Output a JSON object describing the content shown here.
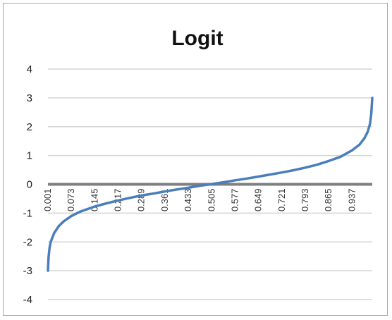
{
  "chart_data": {
    "type": "line",
    "title": "Logit",
    "xlabel": "",
    "ylabel": "",
    "ylim": [
      -4,
      4
    ],
    "yticks": [
      4,
      3,
      2,
      1,
      0,
      -1,
      -2,
      -3,
      -4
    ],
    "xlim": [
      0.001,
      0.999
    ],
    "xticks": [
      "0.001",
      "0.073",
      "0.145",
      "0.217",
      "0.289",
      "0.361",
      "0.433",
      "0.505",
      "0.577",
      "0.649",
      "0.721",
      "0.793",
      "0.865",
      "0.937"
    ],
    "grid": true,
    "legend": "none",
    "series": [
      {
        "color": "#4a7ebb",
        "points": [
          [
            0.001,
            -3.0
          ],
          [
            0.003,
            -2.52
          ],
          [
            0.006,
            -2.2
          ],
          [
            0.01,
            -1.99
          ],
          [
            0.02,
            -1.69
          ],
          [
            0.035,
            -1.44
          ],
          [
            0.05,
            -1.28
          ],
          [
            0.073,
            -1.1
          ],
          [
            0.1,
            -0.95
          ],
          [
            0.145,
            -0.77
          ],
          [
            0.181,
            -0.66
          ],
          [
            0.217,
            -0.56
          ],
          [
            0.253,
            -0.47
          ],
          [
            0.289,
            -0.39
          ],
          [
            0.325,
            -0.32
          ],
          [
            0.361,
            -0.25
          ],
          [
            0.397,
            -0.18
          ],
          [
            0.433,
            -0.12
          ],
          [
            0.469,
            -0.05
          ],
          [
            0.505,
            0.01
          ],
          [
            0.541,
            0.07
          ],
          [
            0.577,
            0.14
          ],
          [
            0.613,
            0.2
          ],
          [
            0.649,
            0.27
          ],
          [
            0.685,
            0.34
          ],
          [
            0.721,
            0.41
          ],
          [
            0.757,
            0.49
          ],
          [
            0.793,
            0.58
          ],
          [
            0.829,
            0.68
          ],
          [
            0.865,
            0.81
          ],
          [
            0.9,
            0.95
          ],
          [
            0.937,
            1.18
          ],
          [
            0.96,
            1.38
          ],
          [
            0.975,
            1.6
          ],
          [
            0.985,
            1.82
          ],
          [
            0.992,
            2.1
          ],
          [
            0.996,
            2.45
          ],
          [
            0.999,
            3.0
          ]
        ]
      }
    ]
  }
}
